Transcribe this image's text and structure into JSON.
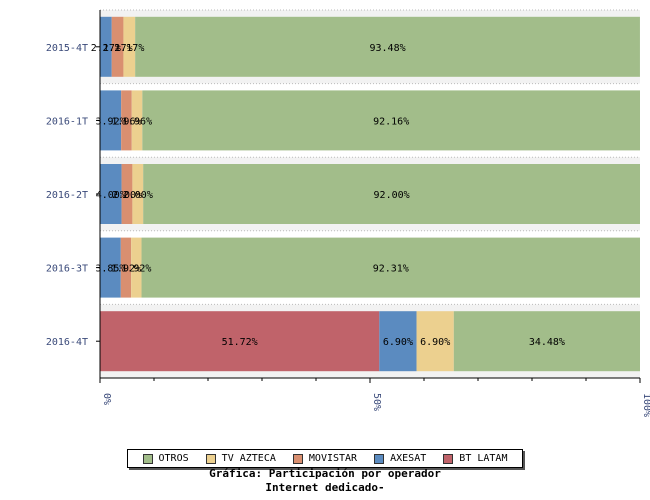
{
  "chart_data": {
    "type": "bar",
    "orientation": "horizontal",
    "stacked": true,
    "percent_axis": true,
    "categories": [
      "2015-4T",
      "2016-1T",
      "2016-2T",
      "2016-3T",
      "2016-4T"
    ],
    "series": [
      {
        "name": "BT LATAM",
        "color": "#c0636a",
        "values": [
          0,
          0,
          0,
          0,
          51.72
        ],
        "labels": [
          "",
          "",
          "",
          "",
          "51.72%"
        ]
      },
      {
        "name": "AXESAT",
        "color": "#5b8bc0",
        "values": [
          2.17,
          3.92,
          4.0,
          3.85,
          6.9
        ],
        "labels": [
          "2.17%",
          "3.92%",
          "4.00%",
          "3.85%",
          "6.90%"
        ]
      },
      {
        "name": "MOVISTAR",
        "color": "#d98f70",
        "values": [
          2.17,
          1.96,
          2.0,
          1.92,
          0
        ],
        "labels": [
          "2.17%",
          "1.96%",
          "2.00%",
          "1.92%",
          ""
        ]
      },
      {
        "name": "TV AZTECA",
        "color": "#ecd08f",
        "values": [
          2.17,
          1.96,
          2.0,
          1.92,
          6.9
        ],
        "labels": [
          "2.17%",
          "1.96%",
          "2.00%",
          "1.92%",
          "6.90%"
        ]
      },
      {
        "name": "OTROS",
        "color": "#a2bd8a",
        "values": [
          93.48,
          92.16,
          92.0,
          92.31,
          34.48
        ],
        "labels": [
          "93.48%",
          "92.16%",
          "92.00%",
          "92.31%",
          "34.48%"
        ]
      }
    ],
    "x_ticks": [
      "0%",
      "50%",
      "100%"
    ],
    "xlim": [
      0,
      100
    ],
    "legend_order": [
      "OTROS",
      "TV AZTECA",
      "MOVISTAR",
      "AXESAT",
      "BT LATAM"
    ],
    "legend_position": "bottom",
    "grid": true
  },
  "caption": {
    "line1": "Gráfica: Participación por operador",
    "line2": "Internet dedicado-"
  }
}
